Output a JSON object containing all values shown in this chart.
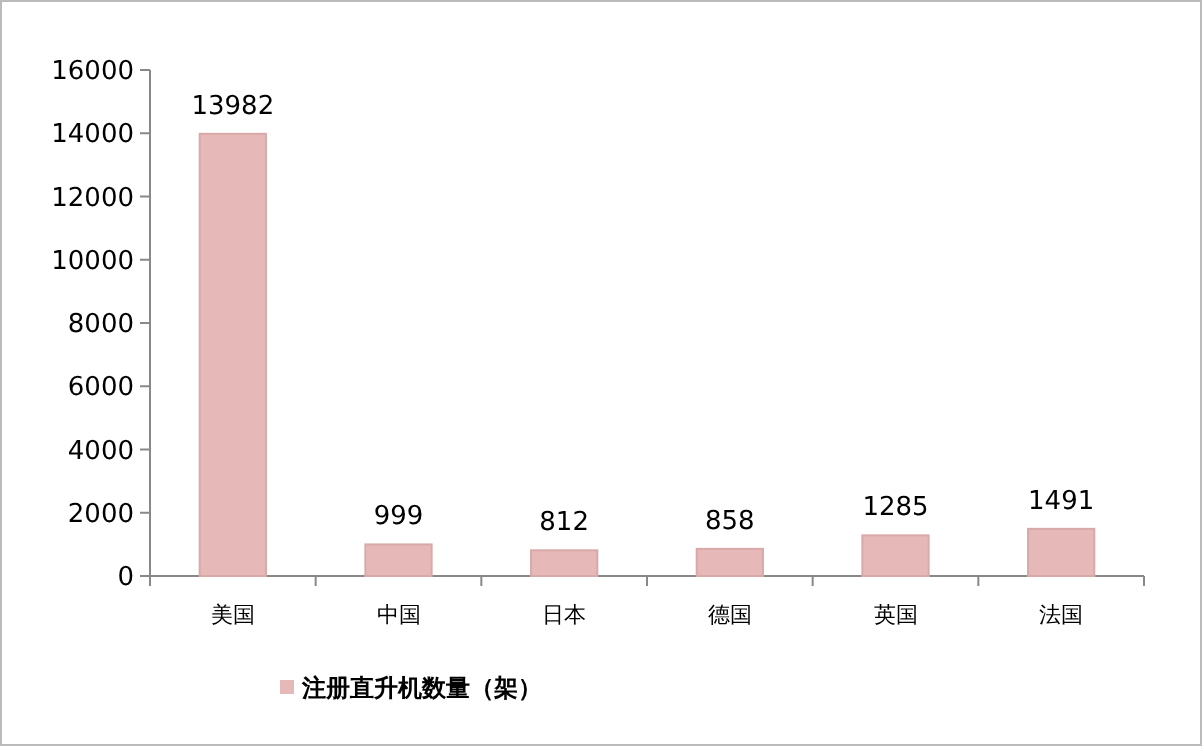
{
  "chart_data": {
    "type": "bar",
    "categories": [
      "美国",
      "中国",
      "日本",
      "德国",
      "英国",
      "法国"
    ],
    "series": [
      {
        "name": "注册直升机数量（架）",
        "color": "#e6b9b8",
        "values": [
          13982,
          999,
          812,
          858,
          1285,
          1491
        ]
      }
    ],
    "ylim": [
      0,
      16000
    ],
    "yticks": [
      0,
      2000,
      4000,
      6000,
      8000,
      10000,
      12000,
      14000,
      16000
    ],
    "data_labels": true,
    "legend": "bottom",
    "grid": false
  }
}
